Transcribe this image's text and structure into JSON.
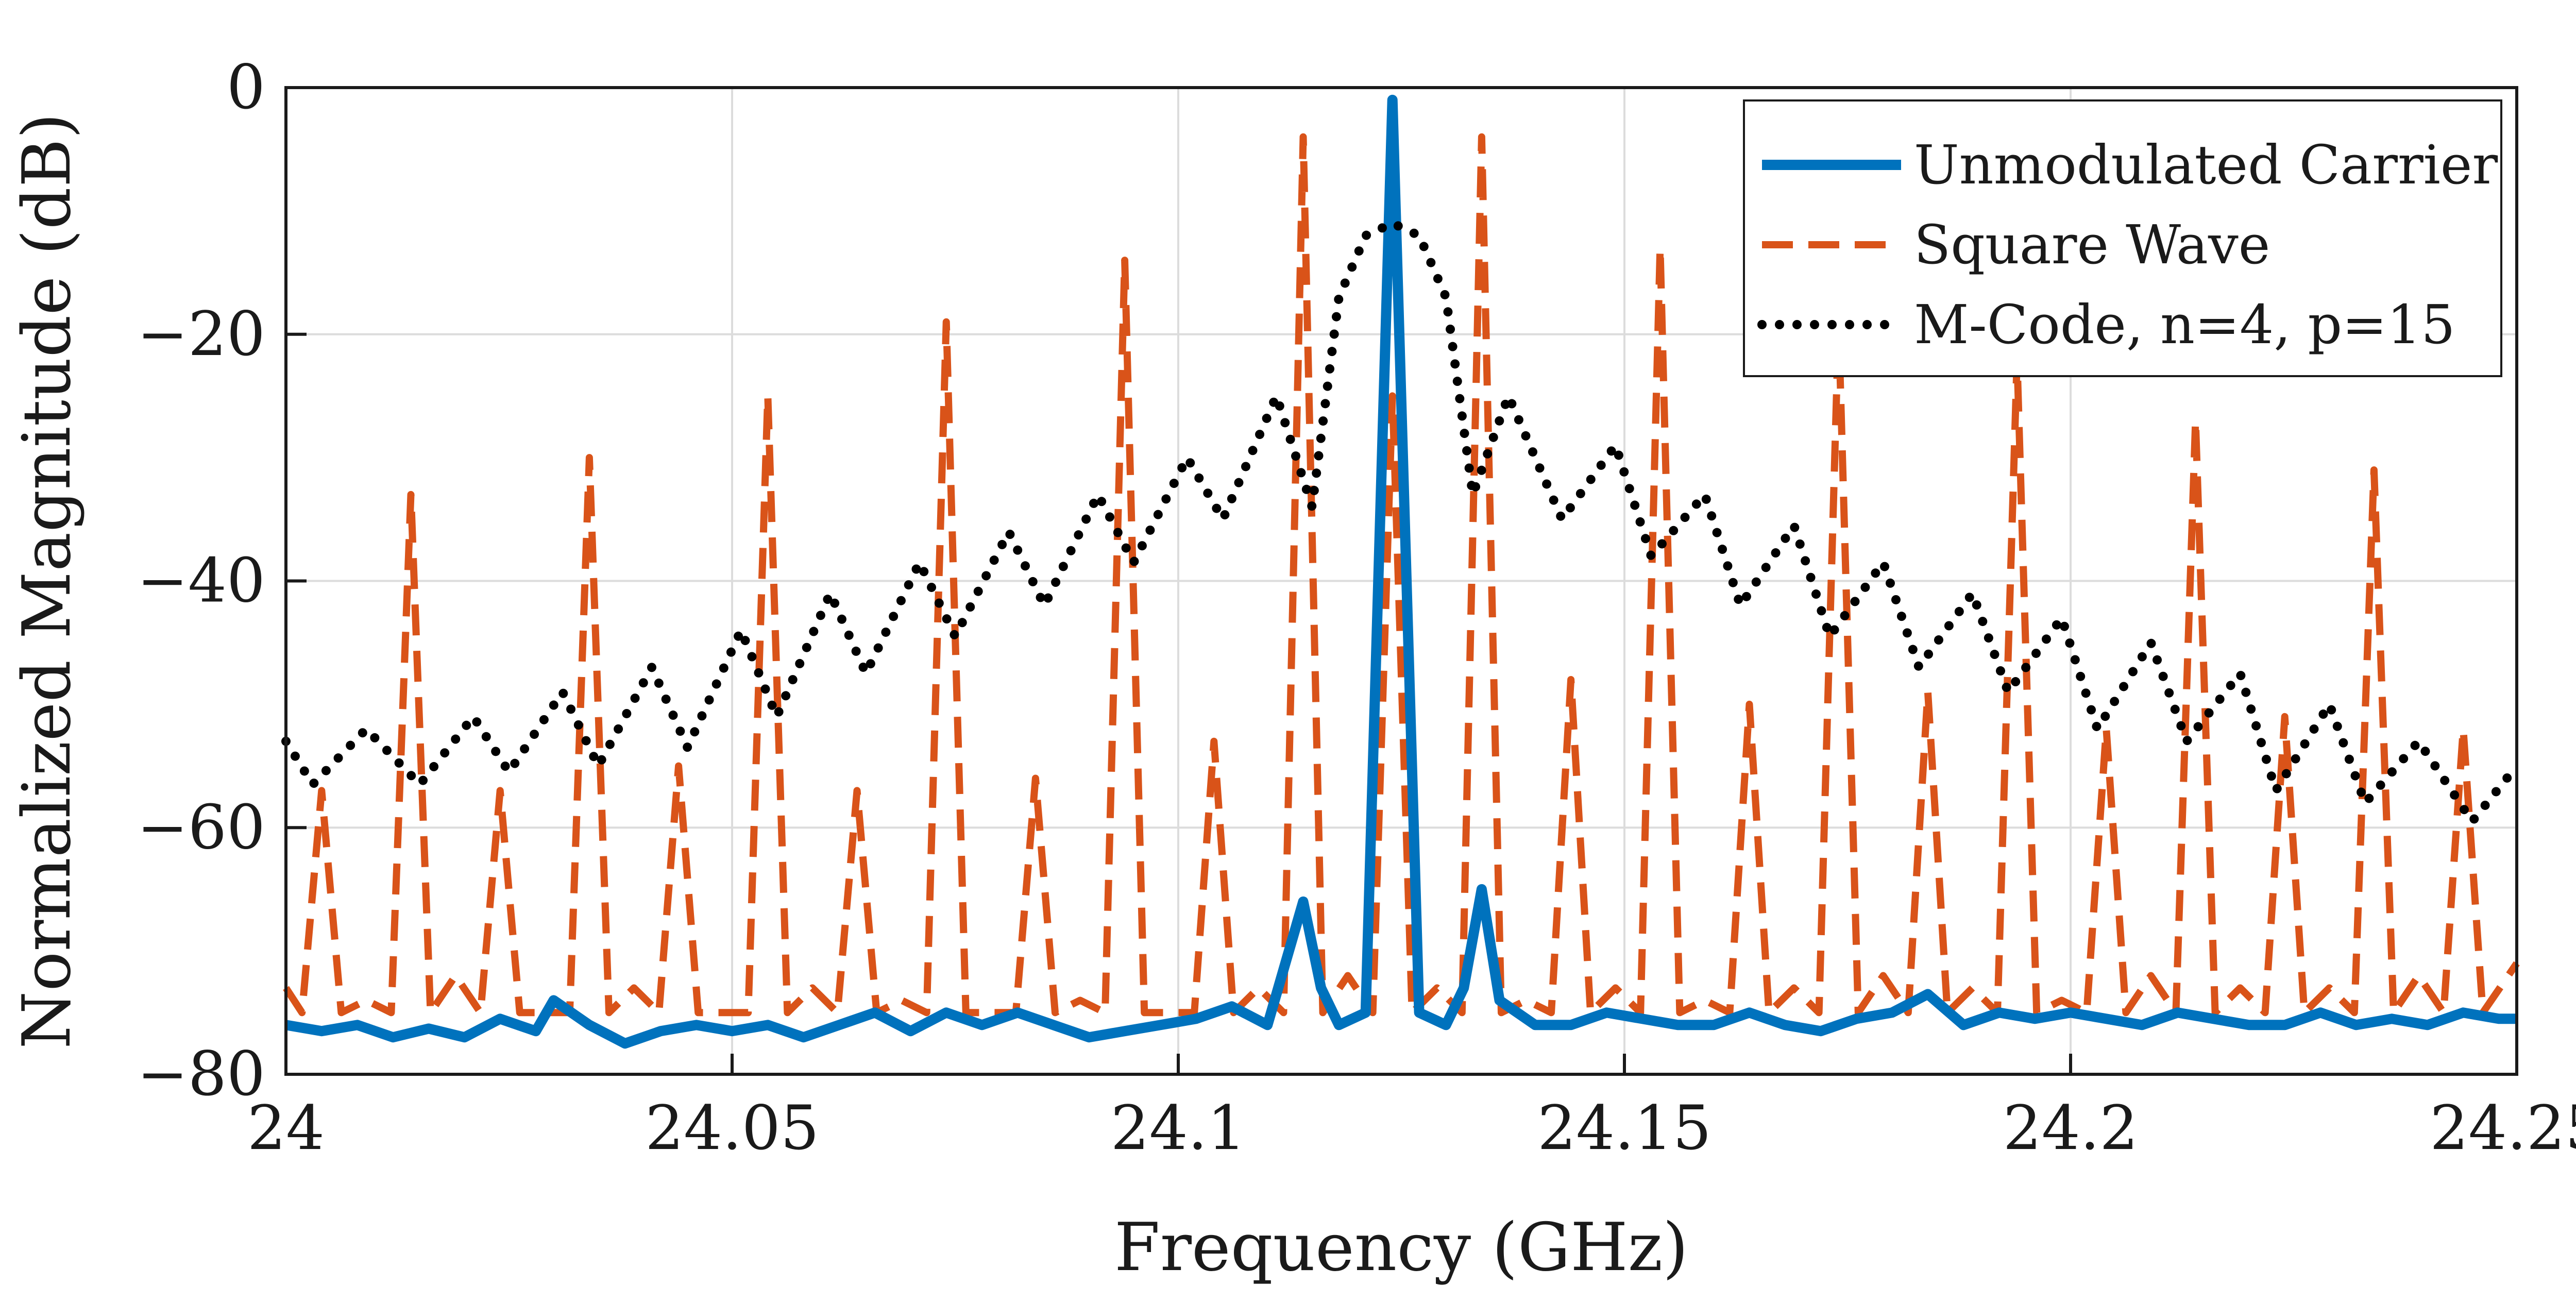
{
  "chart_data": {
    "type": "line",
    "title": "",
    "xlabel": "Frequency (GHz)",
    "ylabel": "Normalized Magnitude (dB)",
    "xlim": [
      24,
      24.25
    ],
    "ylim": [
      -80,
      0
    ],
    "xticks": [
      24,
      24.05,
      24.1,
      24.15,
      24.2,
      24.25
    ],
    "xtick_labels": [
      "24",
      "24.05",
      "24.1",
      "24.15",
      "24.2",
      "24.25"
    ],
    "yticks": [
      -80,
      -60,
      -40,
      -20,
      0
    ],
    "ytick_labels": [
      "−80",
      "−60",
      "−40",
      "−20",
      "0"
    ],
    "grid": true,
    "legend_position": "top-right",
    "series": [
      {
        "name": "Unmodulated Carrier",
        "color": "#0072BD",
        "style": "solid",
        "points": [
          [
            24.0,
            -76
          ],
          [
            24.004,
            -76.5
          ],
          [
            24.008,
            -76
          ],
          [
            24.012,
            -77
          ],
          [
            24.016,
            -76.3
          ],
          [
            24.02,
            -77
          ],
          [
            24.024,
            -75.5
          ],
          [
            24.028,
            -76.5
          ],
          [
            24.03,
            -74
          ],
          [
            24.034,
            -76
          ],
          [
            24.038,
            -77.5
          ],
          [
            24.042,
            -76.5
          ],
          [
            24.046,
            -76
          ],
          [
            24.05,
            -76.5
          ],
          [
            24.054,
            -76
          ],
          [
            24.058,
            -77
          ],
          [
            24.062,
            -76
          ],
          [
            24.066,
            -75
          ],
          [
            24.07,
            -76.5
          ],
          [
            24.074,
            -75
          ],
          [
            24.078,
            -76
          ],
          [
            24.082,
            -75
          ],
          [
            24.086,
            -76
          ],
          [
            24.09,
            -77
          ],
          [
            24.094,
            -76.5
          ],
          [
            24.098,
            -76
          ],
          [
            24.102,
            -75.5
          ],
          [
            24.106,
            -74.5
          ],
          [
            24.11,
            -76
          ],
          [
            24.114,
            -66
          ],
          [
            24.116,
            -73
          ],
          [
            24.118,
            -76
          ],
          [
            24.121,
            -75
          ],
          [
            24.124,
            -1
          ],
          [
            24.127,
            -75
          ],
          [
            24.13,
            -76
          ],
          [
            24.132,
            -73
          ],
          [
            24.134,
            -65
          ],
          [
            24.136,
            -74
          ],
          [
            24.14,
            -76
          ],
          [
            24.144,
            -76
          ],
          [
            24.148,
            -75
          ],
          [
            24.152,
            -75.5
          ],
          [
            24.156,
            -76
          ],
          [
            24.16,
            -76
          ],
          [
            24.164,
            -75
          ],
          [
            24.168,
            -76
          ],
          [
            24.172,
            -76.5
          ],
          [
            24.176,
            -75.5
          ],
          [
            24.18,
            -75
          ],
          [
            24.184,
            -73.5
          ],
          [
            24.188,
            -76
          ],
          [
            24.192,
            -75
          ],
          [
            24.196,
            -75.5
          ],
          [
            24.2,
            -75
          ],
          [
            24.204,
            -75.5
          ],
          [
            24.208,
            -76
          ],
          [
            24.212,
            -75
          ],
          [
            24.216,
            -75.5
          ],
          [
            24.22,
            -76
          ],
          [
            24.224,
            -76
          ],
          [
            24.228,
            -75
          ],
          [
            24.232,
            -76
          ],
          [
            24.236,
            -75.5
          ],
          [
            24.24,
            -76
          ],
          [
            24.244,
            -75
          ],
          [
            24.248,
            -75.5
          ],
          [
            24.25,
            -75.5
          ]
        ]
      },
      {
        "name": "Square Wave",
        "color": "#D95319",
        "style": "dashed",
        "peaks": [
          [
            24.004,
            -57
          ],
          [
            24.014,
            -33
          ],
          [
            24.024,
            -57
          ],
          [
            24.034,
            -30
          ],
          [
            24.044,
            -55
          ],
          [
            24.054,
            -25
          ],
          [
            24.064,
            -57
          ],
          [
            24.074,
            -19
          ],
          [
            24.084,
            -56
          ],
          [
            24.094,
            -14
          ],
          [
            24.104,
            -53
          ],
          [
            24.114,
            -4
          ],
          [
            24.124,
            -25
          ],
          [
            24.134,
            -4
          ],
          [
            24.144,
            -48
          ],
          [
            24.154,
            -13
          ],
          [
            24.164,
            -50
          ],
          [
            24.174,
            -19
          ],
          [
            24.184,
            -49
          ],
          [
            24.194,
            -22
          ],
          [
            24.204,
            -52
          ],
          [
            24.214,
            -27
          ],
          [
            24.224,
            -51
          ],
          [
            24.234,
            -31
          ],
          [
            24.244,
            -52
          ]
        ],
        "floor": [
          [
            24.0,
            -73
          ],
          [
            24.009,
            -74
          ],
          [
            24.019,
            -72
          ],
          [
            24.029,
            -75
          ],
          [
            24.039,
            -73
          ],
          [
            24.049,
            -75
          ],
          [
            24.059,
            -73
          ],
          [
            24.069,
            -74
          ],
          [
            24.079,
            -75
          ],
          [
            24.089,
            -74
          ],
          [
            24.099,
            -75
          ],
          [
            24.109,
            -73
          ],
          [
            24.119,
            -72
          ],
          [
            24.129,
            -73
          ],
          [
            24.139,
            -74
          ],
          [
            24.149,
            -73
          ],
          [
            24.159,
            -74
          ],
          [
            24.169,
            -73
          ],
          [
            24.179,
            -72
          ],
          [
            24.189,
            -73
          ],
          [
            24.199,
            -74
          ],
          [
            24.209,
            -72
          ],
          [
            24.219,
            -73
          ],
          [
            24.229,
            -73
          ],
          [
            24.239,
            -72
          ],
          [
            24.25,
            -71
          ]
        ]
      },
      {
        "name": "M-Code, n=4, p=15",
        "color": "#000000",
        "style": "dotted",
        "points": [
          [
            24.0,
            -53
          ],
          [
            24.003,
            -56.5
          ],
          [
            24.009,
            -52
          ],
          [
            24.015,
            -56.5
          ],
          [
            24.021,
            -51
          ],
          [
            24.025,
            -55.5
          ],
          [
            24.031,
            -49
          ],
          [
            24.035,
            -55
          ],
          [
            24.041,
            -47
          ],
          [
            24.045,
            -53.5
          ],
          [
            24.051,
            -44
          ],
          [
            24.055,
            -51
          ],
          [
            24.061,
            -41
          ],
          [
            24.065,
            -47.5
          ],
          [
            24.071,
            -38.5
          ],
          [
            24.075,
            -44.5
          ],
          [
            24.081,
            -36
          ],
          [
            24.085,
            -42
          ],
          [
            24.091,
            -33
          ],
          [
            24.095,
            -38.5
          ],
          [
            24.101,
            -30
          ],
          [
            24.105,
            -35
          ],
          [
            24.111,
            -25
          ],
          [
            24.115,
            -34
          ],
          [
            24.118,
            -17
          ],
          [
            24.121,
            -12
          ],
          [
            24.124,
            -11
          ],
          [
            24.127,
            -12
          ],
          [
            24.13,
            -17
          ],
          [
            24.133,
            -33
          ],
          [
            24.137,
            -25
          ],
          [
            24.143,
            -35
          ],
          [
            24.149,
            -29
          ],
          [
            24.153,
            -38
          ],
          [
            24.159,
            -33
          ],
          [
            24.163,
            -42
          ],
          [
            24.169,
            -35.5
          ],
          [
            24.173,
            -44.5
          ],
          [
            24.179,
            -38.5
          ],
          [
            24.183,
            -47
          ],
          [
            24.189,
            -41
          ],
          [
            24.193,
            -49
          ],
          [
            24.199,
            -43
          ],
          [
            24.203,
            -52
          ],
          [
            24.209,
            -45
          ],
          [
            24.213,
            -53
          ],
          [
            24.219,
            -47.5
          ],
          [
            24.223,
            -57
          ],
          [
            24.229,
            -50
          ],
          [
            24.233,
            -58
          ],
          [
            24.239,
            -53
          ],
          [
            24.245,
            -59.5
          ],
          [
            24.25,
            -55
          ]
        ]
      }
    ]
  }
}
